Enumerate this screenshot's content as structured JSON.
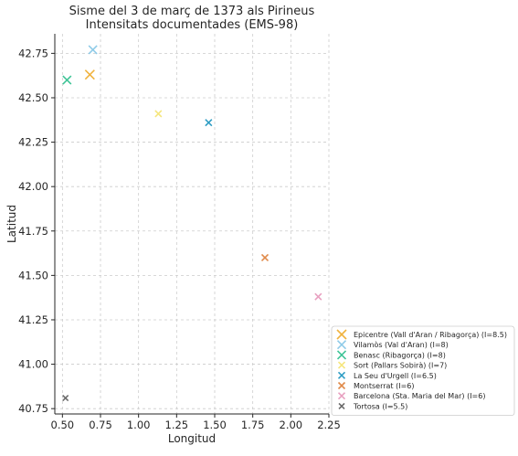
{
  "chart_data": {
    "type": "scatter",
    "title": [
      "Sisme del 3 de març de 1373 als Pirineus",
      "Intensitats documentades (EMS-98)"
    ],
    "xlabel": "Longitud",
    "ylabel": "Latitud",
    "xlim": [
      0.45,
      2.25
    ],
    "ylim": [
      40.72,
      42.86
    ],
    "xticks": [
      "0.50",
      "0.75",
      "1.00",
      "1.25",
      "1.50",
      "1.75",
      "2.00",
      "2.25"
    ],
    "yticks": [
      "40.75",
      "41.00",
      "41.25",
      "41.50",
      "41.75",
      "42.00",
      "42.25",
      "42.50",
      "42.75"
    ],
    "grid": true,
    "legend_position": "bottom-right, outside",
    "series": [
      {
        "name": "Epicentre (Vall d'Aran / Ribagorça) (I=8.5)",
        "color": "#f0b23e",
        "size": "large",
        "points": [
          {
            "x": 0.68,
            "y": 42.63
          }
        ]
      },
      {
        "name": "Vilamòs (Val d'Aran) (I=8)",
        "color": "#8fcbe8",
        "size": "medium",
        "points": [
          {
            "x": 0.7,
            "y": 42.77
          }
        ]
      },
      {
        "name": "Benasc (Ribagorça) (I=8)",
        "color": "#3fc497",
        "size": "medium",
        "points": [
          {
            "x": 0.53,
            "y": 42.6
          }
        ]
      },
      {
        "name": "Sort (Pallars Sobirà) (I=7)",
        "color": "#f5e67d",
        "size": "small",
        "points": [
          {
            "x": 1.13,
            "y": 42.41
          }
        ]
      },
      {
        "name": "La Seu d'Urgell (I=6.5)",
        "color": "#2f9dc4",
        "size": "small",
        "points": [
          {
            "x": 1.46,
            "y": 42.36
          }
        ]
      },
      {
        "name": "Montserrat (I=6)",
        "color": "#e08a4a",
        "size": "small",
        "points": [
          {
            "x": 1.83,
            "y": 41.6
          }
        ]
      },
      {
        "name": "Barcelona (Sta. Maria del Mar) (I=6)",
        "color": "#e8a0c0",
        "size": "small",
        "points": [
          {
            "x": 2.18,
            "y": 41.38
          }
        ]
      },
      {
        "name": "Tortosa (I=5.5)",
        "color": "#6b6b6b",
        "size": "tiny",
        "points": [
          {
            "x": 0.52,
            "y": 40.81
          }
        ]
      }
    ]
  }
}
